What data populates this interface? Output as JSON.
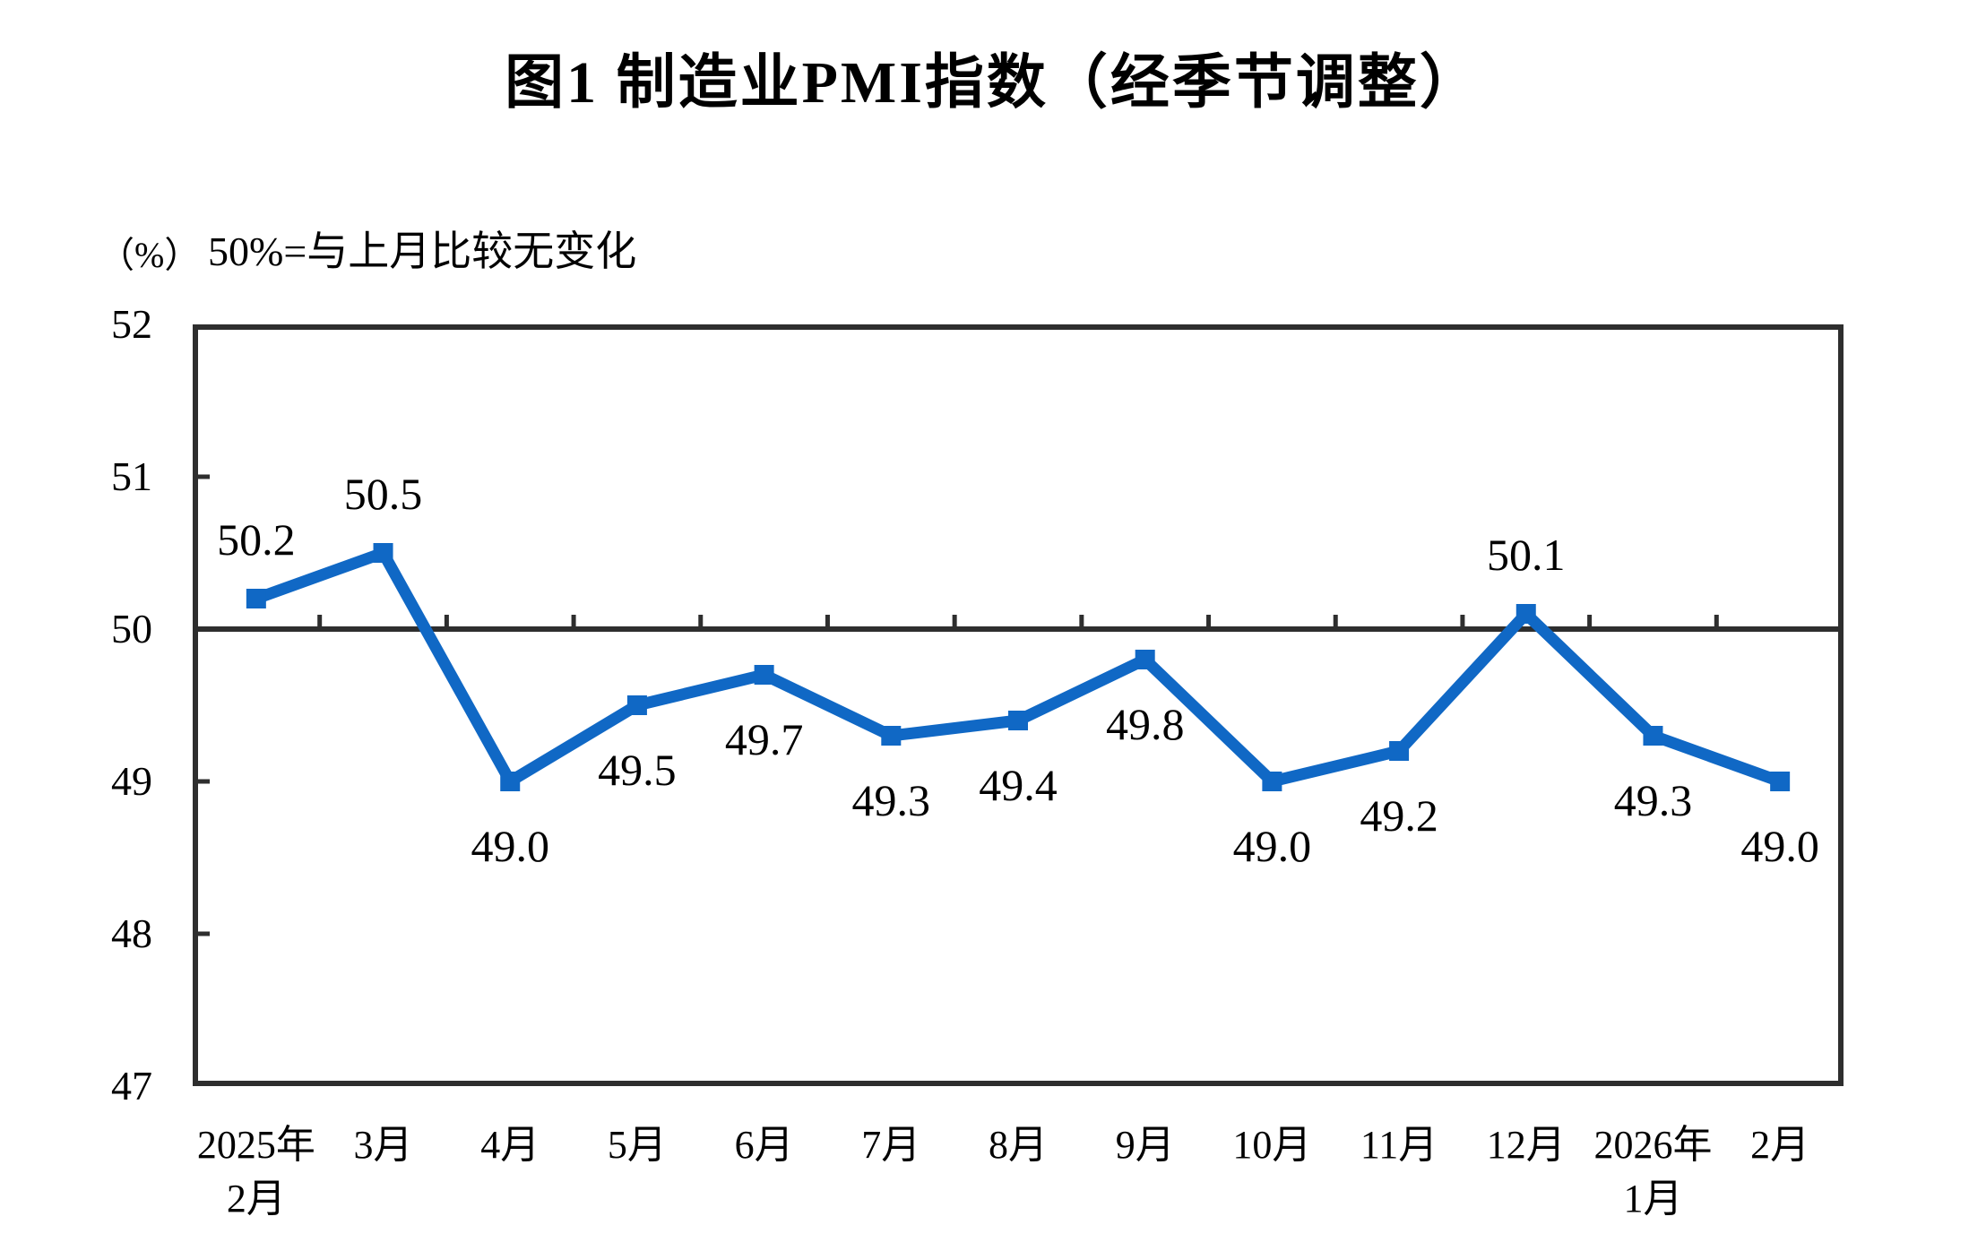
{
  "chart_data": {
    "type": "line",
    "title": "图1  制造业PMI指数（经季节调整）",
    "unit_label": "（%）",
    "annotation": "50%=与上月比较无变化",
    "categories": [
      [
        "2025年",
        "2月"
      ],
      [
        "3月"
      ],
      [
        "4月"
      ],
      [
        "5月"
      ],
      [
        "6月"
      ],
      [
        "7月"
      ],
      [
        "8月"
      ],
      [
        "9月"
      ],
      [
        "10月"
      ],
      [
        "11月"
      ],
      [
        "12月"
      ],
      [
        "2026年",
        "1月"
      ],
      [
        "2月"
      ]
    ],
    "values": [
      50.2,
      50.5,
      49.0,
      49.5,
      49.7,
      49.3,
      49.4,
      49.8,
      49.0,
      49.2,
      50.1,
      49.3,
      49.0
    ],
    "data_labels": [
      "50.2",
      "50.5",
      "49.0",
      "49.5",
      "49.7",
      "49.3",
      "49.4",
      "49.8",
      "49.0",
      "49.2",
      "50.1",
      "49.3",
      "49.0"
    ],
    "ylim": [
      47,
      52
    ],
    "yticks": [
      52,
      51,
      50,
      49,
      48,
      47
    ],
    "reference_line": 50,
    "grid": false,
    "legend_position": "none",
    "marker": "square",
    "colors": {
      "series": "#1068c5",
      "axis": "#2e2e2e",
      "text": "#000000",
      "background": "#ffffff"
    }
  }
}
